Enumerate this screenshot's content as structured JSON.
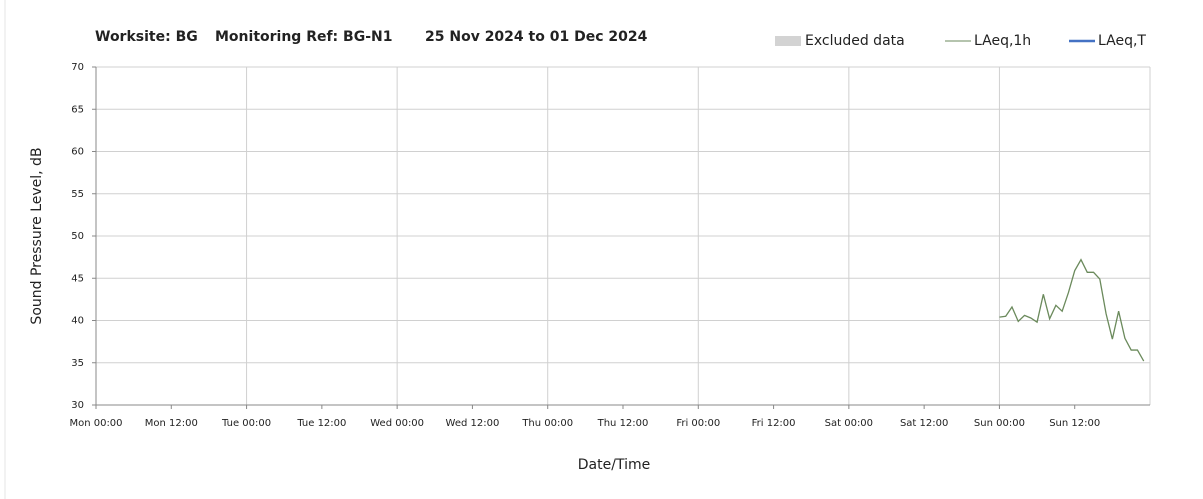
{
  "chart_data": {
    "type": "line",
    "title_parts": [
      "Worksite: BG",
      "Monitoring Ref: BG-N1",
      "25 Nov 2024 to 01 Dec 2024"
    ],
    "xlabel": "Date/Time",
    "ylabel": "Sound Pressure Level, dB",
    "excluded_label": "Excluded data",
    "excluded_color": "#d3d3d3",
    "x": [
      144,
      145,
      146,
      147,
      148,
      149,
      150,
      151,
      152,
      153,
      154,
      155,
      156,
      157,
      158,
      159,
      160,
      161,
      162,
      163,
      164,
      165,
      166,
      167
    ],
    "series": [
      {
        "name": "LAeq,1h",
        "color": "#6b8a5c",
        "values": [
          40.4,
          40.5,
          41.6,
          39.9,
          40.6,
          40.3,
          39.8,
          43.1,
          40.2,
          41.8,
          41.1,
          43.3,
          45.9,
          47.2,
          45.7,
          45.7,
          44.9,
          40.8,
          37.8,
          41.1,
          37.9,
          36.5,
          36.5,
          35.2
        ]
      },
      {
        "name": "LAeq,T",
        "color": "#4472c4",
        "values": [
          null,
          null,
          null,
          null,
          null,
          null,
          null,
          null,
          null,
          null,
          null,
          null,
          null,
          null,
          null,
          null,
          null,
          null,
          null,
          null,
          null,
          null,
          null,
          null
        ]
      }
    ],
    "xlim": [
      0,
      168
    ],
    "xticks": [
      {
        "value": 0,
        "label": "Mon 00:00"
      },
      {
        "value": 12,
        "label": "Mon 12:00"
      },
      {
        "value": 24,
        "label": "Tue 00:00"
      },
      {
        "value": 36,
        "label": "Tue 12:00"
      },
      {
        "value": 48,
        "label": "Wed 00:00"
      },
      {
        "value": 60,
        "label": "Wed 12:00"
      },
      {
        "value": 72,
        "label": "Thu 00:00"
      },
      {
        "value": 84,
        "label": "Thu 12:00"
      },
      {
        "value": 96,
        "label": "Fri 00:00"
      },
      {
        "value": 108,
        "label": "Fri 12:00"
      },
      {
        "value": 120,
        "label": "Sat 00:00"
      },
      {
        "value": 132,
        "label": "Sat 12:00"
      },
      {
        "value": 144,
        "label": "Sun 00:00"
      },
      {
        "value": 156,
        "label": "Sun 12:00"
      }
    ],
    "xgrid_step": 24,
    "ylim": [
      30,
      70
    ],
    "yticks": [
      30,
      35,
      40,
      45,
      50,
      55,
      60,
      65,
      70
    ],
    "grid": true
  }
}
